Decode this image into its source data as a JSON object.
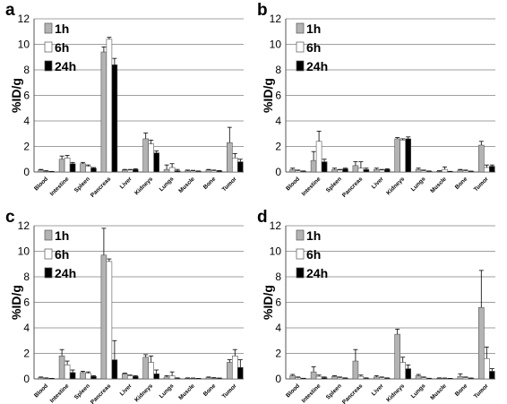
{
  "colors": {
    "1h": "#b3b3b3",
    "6h": "#ffffff",
    "24h": "#000000",
    "edge": "#555555",
    "grid": "#7f7f7f"
  },
  "chart_data": [
    {
      "type": "bar",
      "panel_label": "a",
      "ylabel": "%ID/g",
      "ylim": [
        0,
        12
      ],
      "yticks": [
        "0",
        "2",
        "4",
        "6",
        "8",
        "10",
        "12"
      ],
      "grid": true,
      "legend": "top-left",
      "categories": [
        "Blood",
        "Intestine",
        "Spleen",
        "Pancreas",
        "Liver",
        "Kidneys",
        "Lungs",
        "Muscle",
        "Bone",
        "Tumor"
      ],
      "series": [
        {
          "name": "1h",
          "values": [
            0.15,
            1.0,
            0.65,
            9.4,
            0.15,
            2.6,
            0.2,
            0.1,
            0.15,
            2.3
          ],
          "errors": [
            0.05,
            0.25,
            0.1,
            0.4,
            0.05,
            0.45,
            0.35,
            0.05,
            0.05,
            1.2
          ]
        },
        {
          "name": "6h",
          "values": [
            0.05,
            1.1,
            0.45,
            10.4,
            0.15,
            2.2,
            0.35,
            0.08,
            0.1,
            1.1
          ],
          "errors": [
            0.05,
            0.2,
            0.1,
            0.15,
            0.05,
            0.3,
            0.3,
            0.05,
            0.05,
            0.35
          ]
        },
        {
          "name": "24h",
          "values": [
            0.02,
            0.65,
            0.3,
            8.4,
            0.2,
            1.5,
            0.1,
            0.05,
            0.08,
            0.8
          ],
          "errors": [
            0.02,
            0.1,
            0.05,
            0.5,
            0.05,
            0.15,
            0.1,
            0.03,
            0.03,
            0.2
          ]
        }
      ]
    },
    {
      "type": "bar",
      "panel_label": "b",
      "ylabel": "%ID/g",
      "ylim": [
        0,
        12
      ],
      "yticks": [
        "0",
        "2",
        "4",
        "6",
        "8",
        "10",
        "12"
      ],
      "grid": true,
      "legend": "top-left",
      "categories": [
        "Blood",
        "Intestine",
        "Spleen",
        "Pancreas",
        "Liver",
        "Kidneys",
        "Lungs",
        "Muscle",
        "Bone",
        "Tumor"
      ],
      "series": [
        {
          "name": "1h",
          "values": [
            0.2,
            0.9,
            0.2,
            0.5,
            0.2,
            2.6,
            0.2,
            0.05,
            0.15,
            2.1
          ],
          "errors": [
            0.1,
            0.7,
            0.1,
            0.3,
            0.1,
            0.1,
            0.1,
            0.05,
            0.05,
            0.3
          ]
        },
        {
          "name": "6h",
          "values": [
            0.1,
            2.4,
            0.15,
            0.3,
            0.15,
            2.5,
            0.1,
            0.2,
            0.1,
            0.35
          ],
          "errors": [
            0.05,
            0.8,
            0.05,
            0.5,
            0.05,
            0.1,
            0.05,
            0.2,
            0.05,
            0.2
          ]
        },
        {
          "name": "24h",
          "values": [
            0.05,
            0.8,
            0.25,
            0.2,
            0.2,
            2.6,
            0.05,
            0.03,
            0.05,
            0.45
          ],
          "errors": [
            0.03,
            0.2,
            0.05,
            0.1,
            0.05,
            0.15,
            0.03,
            0.02,
            0.02,
            0.1
          ]
        }
      ]
    },
    {
      "type": "bar",
      "panel_label": "c",
      "ylabel": "%ID/g",
      "ylim": [
        0,
        12
      ],
      "yticks": [
        "0",
        "2",
        "4",
        "6",
        "8",
        "10",
        "12"
      ],
      "grid": true,
      "legend": "top-left",
      "categories": [
        "Blood",
        "Intestine",
        "Spleen",
        "Pancreas",
        "Liver",
        "Kidneys",
        "Lungs",
        "Muscle",
        "Bone",
        "Tumor"
      ],
      "series": [
        {
          "name": "1h",
          "values": [
            0.1,
            1.8,
            0.5,
            9.7,
            0.4,
            1.7,
            0.15,
            0.05,
            0.1,
            1.3
          ],
          "errors": [
            0.05,
            0.5,
            0.1,
            2.1,
            0.05,
            0.2,
            0.1,
            0.03,
            0.05,
            0.2
          ]
        },
        {
          "name": "6h",
          "values": [
            0.05,
            1.1,
            0.45,
            9.2,
            0.25,
            1.3,
            0.25,
            0.05,
            0.05,
            1.8
          ],
          "errors": [
            0.03,
            0.3,
            0.1,
            0.2,
            0.05,
            0.5,
            0.3,
            0.02,
            0.05,
            0.5
          ]
        },
        {
          "name": "24h",
          "values": [
            0.02,
            0.5,
            0.2,
            1.5,
            0.2,
            0.4,
            0.05,
            0.02,
            0.05,
            0.9
          ],
          "errors": [
            0.02,
            0.2,
            0.05,
            1.5,
            0.05,
            0.3,
            0.03,
            0.01,
            0.02,
            0.6
          ]
        }
      ]
    },
    {
      "type": "bar",
      "panel_label": "d",
      "ylabel": "%ID/g",
      "ylim": [
        0,
        12
      ],
      "yticks": [
        "0",
        "2",
        "4",
        "6",
        "8",
        "10",
        "12"
      ],
      "grid": true,
      "legend": "top-left",
      "categories": [
        "Blood",
        "Intestine",
        "Spleen",
        "Pancreas",
        "Liver",
        "Kidneys",
        "Lungs",
        "Muscle",
        "Bone",
        "Tumor"
      ],
      "series": [
        {
          "name": "1h",
          "values": [
            0.25,
            0.55,
            0.2,
            1.4,
            0.15,
            3.5,
            0.25,
            0.05,
            0.2,
            5.6
          ],
          "errors": [
            0.1,
            0.4,
            0.05,
            0.9,
            0.1,
            0.4,
            0.1,
            0.03,
            0.2,
            2.9
          ]
        },
        {
          "name": "6h",
          "values": [
            0.1,
            0.2,
            0.1,
            0.2,
            0.1,
            1.3,
            0.1,
            0.05,
            0.1,
            1.6
          ],
          "errors": [
            0.05,
            0.1,
            0.05,
            0.1,
            0.05,
            0.4,
            0.05,
            0.02,
            0.05,
            0.9
          ]
        },
        {
          "name": "24h",
          "values": [
            0.03,
            0.1,
            0.05,
            0.05,
            0.05,
            0.8,
            0.03,
            0.02,
            0.05,
            0.6
          ],
          "errors": [
            0.02,
            0.05,
            0.03,
            0.03,
            0.03,
            0.3,
            0.02,
            0.01,
            0.02,
            0.2
          ]
        }
      ]
    }
  ]
}
